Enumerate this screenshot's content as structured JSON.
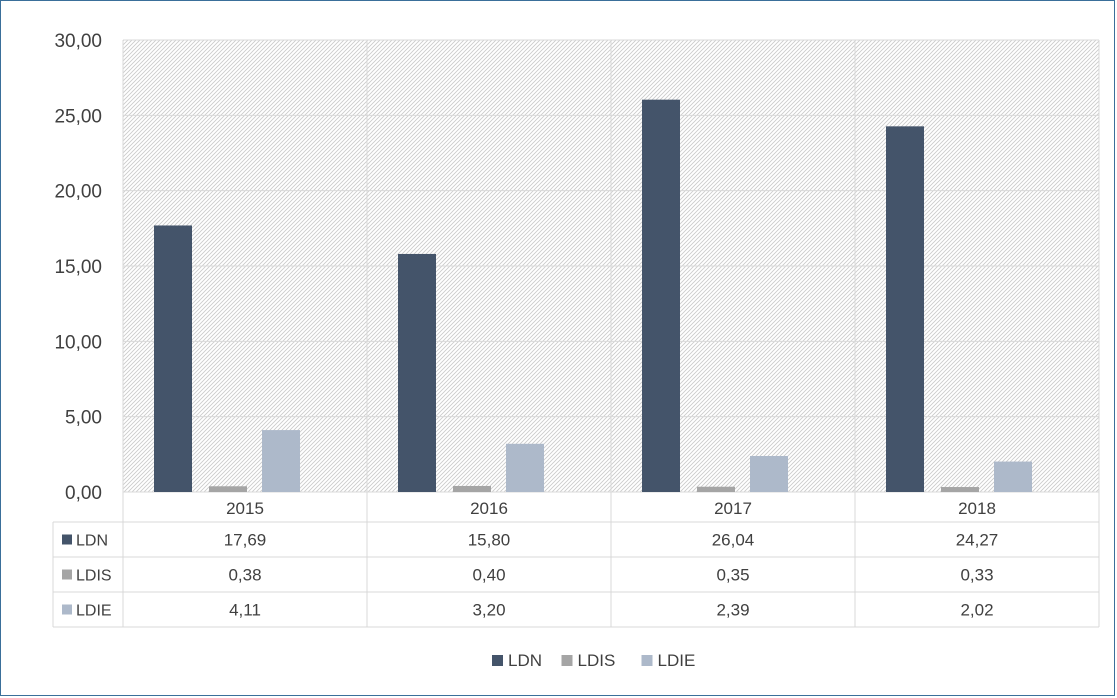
{
  "chart_data": {
    "type": "bar",
    "categories": [
      "2015",
      "2016",
      "2017",
      "2018"
    ],
    "series": [
      {
        "name": "LDN",
        "values": [
          17.69,
          15.8,
          26.04,
          24.27
        ],
        "labels": [
          "17,69",
          "15,80",
          "26,04",
          "24,27"
        ],
        "color": "#44546a"
      },
      {
        "name": "LDIS",
        "values": [
          0.38,
          0.4,
          0.35,
          0.33
        ],
        "labels": [
          "0,38",
          "0,40",
          "0,35",
          "0,33"
        ],
        "color": "#a5a5a5"
      },
      {
        "name": "LDIE",
        "values": [
          4.11,
          3.2,
          2.39,
          2.02
        ],
        "labels": [
          "4,11",
          "3,20",
          "2,39",
          "2,02"
        ],
        "color": "#adb9ca"
      }
    ],
    "yticks": [
      "0,00",
      "5,00",
      "10,00",
      "15,00",
      "20,00",
      "25,00",
      "30,00"
    ],
    "ylim": [
      0,
      30
    ],
    "grid": true,
    "data_table": true,
    "legend": "bottom-center",
    "title": "",
    "xlabel": "",
    "ylabel": ""
  }
}
